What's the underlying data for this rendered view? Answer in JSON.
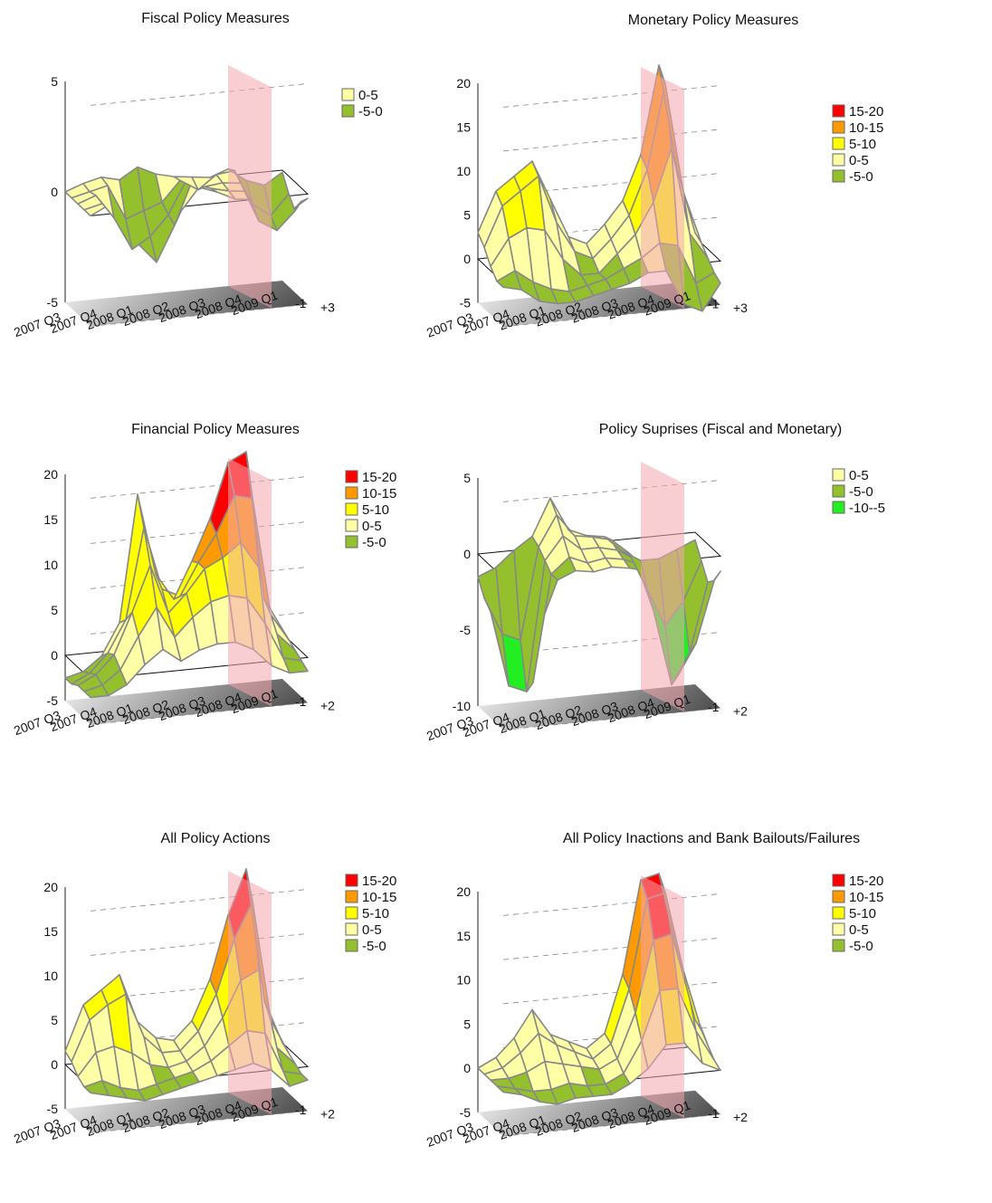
{
  "chart_data": [
    {
      "type": "surface3d",
      "title": "Fiscal Policy Measures",
      "x_labels": [
        "2007 Q3",
        "2007 Q4",
        "2008 Q1",
        "2008 Q2",
        "2008 Q3",
        "2008 Q4",
        "2009 Q1"
      ],
      "depth_labels": [
        "+3",
        "-1"
      ],
      "zlim": [
        -5,
        5
      ],
      "z_ticks": [
        -5,
        0,
        5
      ],
      "legend": [
        {
          "label": "0-5",
          "color": "#ffffa6"
        },
        {
          "label": "-5-0",
          "color": "#93c02c"
        }
      ],
      "rows": [
        [
          0.0,
          0.3,
          0.5,
          0.3,
          0.8,
          0.4,
          0.2,
          0.1,
          0.0,
          0.3,
          -0.3,
          -0.6,
          -0.1
        ],
        [
          0.0,
          0.2,
          0.4,
          -1.2,
          -0.9,
          -0.6,
          0.3,
          -0.2,
          0.4,
          0.5,
          -1.1,
          -1.7,
          -0.8
        ],
        [
          0.0,
          0.3,
          -0.8,
          -2.3,
          -1.8,
          -0.9,
          0.6,
          0.2,
          0.3,
          0.2,
          -1.6,
          -2.1,
          -1.3
        ],
        [
          0.0,
          0.2,
          -0.5,
          -1.8,
          -2.7,
          -1.1,
          0.9,
          0.4,
          0.2,
          0.1,
          -0.9,
          -1.4,
          -0.6
        ],
        [
          0.0,
          0.4,
          0.2,
          -0.6,
          -0.4,
          -0.2,
          0.8,
          0.5,
          0.1,
          0.0,
          -0.4,
          -0.7,
          -0.2
        ]
      ]
    },
    {
      "type": "surface3d",
      "title": "Monetary Policy Measures",
      "x_labels": [
        "2007 Q3",
        "2007 Q4",
        "2008 Q1",
        "2008 Q2",
        "2008 Q3",
        "2008 Q4",
        "2009 Q1"
      ],
      "depth_labels": [
        "+3",
        "-1"
      ],
      "zlim": [
        -5,
        20
      ],
      "z_ticks": [
        -5,
        0,
        5,
        10,
        15,
        20
      ],
      "legend": [
        {
          "label": "15-20",
          "color": "#ff0000"
        },
        {
          "label": "10-15",
          "color": "#ff9900"
        },
        {
          "label": "5-10",
          "color": "#ffff00"
        },
        {
          "label": "0-5",
          "color": "#ffffa6"
        },
        {
          "label": "-5-0",
          "color": "#93c02c"
        }
      ],
      "rows": [
        [
          3.0,
          7.5,
          9.0,
          10.5,
          6.0,
          1.5,
          0.5,
          2.5,
          5.0,
          10.0,
          20.0,
          8.0,
          0.5
        ],
        [
          2.0,
          6.5,
          8.0,
          9.5,
          4.0,
          0.5,
          -0.5,
          1.5,
          4.0,
          9.0,
          18.5,
          6.0,
          0.0
        ],
        [
          0.5,
          3.5,
          4.5,
          4.0,
          0.5,
          -1.5,
          -1.5,
          0.5,
          2.5,
          6.0,
          12.0,
          2.0,
          -1.0
        ],
        [
          -0.5,
          0.5,
          -1.0,
          -2.0,
          -2.5,
          -2.0,
          -1.5,
          -0.5,
          0.5,
          2.0,
          1.5,
          -3.0,
          -2.0
        ],
        [
          -0.5,
          -1.0,
          -2.5,
          -3.0,
          -3.0,
          -2.5,
          -2.0,
          -1.5,
          -0.5,
          -0.5,
          -4.5,
          -5.5,
          -2.5
        ]
      ]
    },
    {
      "type": "surface3d",
      "title": "Financial Policy Measures",
      "x_labels": [
        "2007 Q3",
        "2007 Q4",
        "2008 Q1",
        "2008 Q2",
        "2008 Q3",
        "2008 Q4",
        "2009 Q1"
      ],
      "depth_labels": [
        "+2",
        "-1"
      ],
      "zlim": [
        -5,
        20
      ],
      "z_ticks": [
        -5,
        0,
        5,
        10,
        15,
        20
      ],
      "legend": [
        {
          "label": "15-20",
          "color": "#ff0000"
        },
        {
          "label": "10-15",
          "color": "#ff9900"
        },
        {
          "label": "5-10",
          "color": "#ffff00"
        },
        {
          "label": "0-5",
          "color": "#ffffa6"
        },
        {
          "label": "-5-0",
          "color": "#93c02c"
        }
      ],
      "rows": [
        [
          -2.5,
          -2.0,
          -0.5,
          3.0,
          17.0,
          8.0,
          5.0,
          9.0,
          13.5,
          19.5,
          20.5,
          4.0,
          0.5
        ],
        [
          -2.5,
          -1.5,
          0.5,
          4.0,
          14.0,
          7.0,
          6.0,
          9.5,
          12.5,
          16.5,
          16.0,
          3.0,
          0.0
        ],
        [
          -2.0,
          -1.0,
          1.0,
          5.5,
          10.5,
          5.0,
          7.0,
          9.5,
          10.5,
          12.0,
          9.0,
          1.5,
          -0.5
        ],
        [
          -2.0,
          -1.5,
          0.0,
          3.5,
          6.5,
          3.0,
          5.0,
          6.5,
          7.0,
          6.5,
          3.5,
          -0.5,
          -1.0
        ],
        [
          -2.0,
          -2.0,
          -1.0,
          1.0,
          2.5,
          1.0,
          2.0,
          2.5,
          2.5,
          1.5,
          -0.5,
          -1.5,
          -1.5
        ]
      ]
    },
    {
      "type": "surface3d",
      "title": "Policy Suprises (Fiscal and Monetary)",
      "x_labels": [
        "2007 Q3",
        "2007 Q4",
        "2008 Q1",
        "2008 Q2",
        "2008 Q3",
        "2008 Q4",
        "2009 Q1"
      ],
      "depth_labels": [
        "+2",
        "-1"
      ],
      "zlim": [
        -10,
        5
      ],
      "z_ticks": [
        -10,
        -5,
        0,
        5
      ],
      "legend": [
        {
          "label": "0-5",
          "color": "#ffffa6"
        },
        {
          "label": "-5-0",
          "color": "#93c02c"
        },
        {
          "label": "-10--5",
          "color": "#22ee22"
        }
      ],
      "rows": [
        [
          -1.5,
          -1.0,
          0.0,
          0.8,
          3.2,
          1.0,
          0.5,
          0.3,
          -0.8,
          -1.5,
          -1.5,
          -1.0,
          -0.5
        ],
        [
          -2.5,
          -5.0,
          -5.5,
          0.5,
          2.5,
          1.0,
          0.8,
          0.5,
          -0.5,
          -3.0,
          -5.5,
          -4.0,
          -1.5
        ],
        [
          -3.0,
          -8.0,
          -8.5,
          0.0,
          1.5,
          0.5,
          0.5,
          0.2,
          -0.5,
          -4.0,
          -9.0,
          -7.0,
          -2.5
        ],
        [
          -2.0,
          -7.0,
          -7.5,
          -0.5,
          0.5,
          0.0,
          0.2,
          0.0,
          -0.5,
          -3.5,
          -8.0,
          -6.0,
          -2.0
        ],
        [
          -1.0,
          -3.0,
          -3.5,
          -0.5,
          0.0,
          -0.2,
          0.0,
          -0.2,
          -0.5,
          -2.0,
          -3.5,
          -2.5,
          -1.0
        ]
      ]
    },
    {
      "type": "surface3d",
      "title": "All Policy Actions",
      "x_labels": [
        "2007 Q3",
        "2007 Q4",
        "2008 Q1",
        "2008 Q2",
        "2008 Q3",
        "2008 Q4",
        "2009 Q1"
      ],
      "depth_labels": [
        "+2",
        "-1"
      ],
      "zlim": [
        -5,
        20
      ],
      "z_ticks": [
        -5,
        0,
        5,
        10,
        15,
        20
      ],
      "legend": [
        {
          "label": "15-20",
          "color": "#ff0000"
        },
        {
          "label": "10-15",
          "color": "#ff9900"
        },
        {
          "label": "5-10",
          "color": "#ffff00"
        },
        {
          "label": "0-5",
          "color": "#ffffa6"
        },
        {
          "label": "-5-0",
          "color": "#93c02c"
        }
      ],
      "rows": [
        [
          1.5,
          6.5,
          8.0,
          9.5,
          4.0,
          2.0,
          1.5,
          3.5,
          8.0,
          15.0,
          20.0,
          5.0,
          0.0
        ],
        [
          1.0,
          5.5,
          7.0,
          8.0,
          3.0,
          1.0,
          1.0,
          3.0,
          7.0,
          13.0,
          17.0,
          3.5,
          -0.5
        ],
        [
          0.0,
          2.5,
          3.0,
          2.0,
          0.5,
          0.0,
          0.5,
          2.0,
          5.0,
          9.0,
          10.0,
          1.0,
          -1.0
        ],
        [
          -0.5,
          0.0,
          -1.0,
          -1.5,
          -1.0,
          -0.5,
          0.0,
          1.0,
          2.5,
          4.0,
          3.5,
          -1.0,
          -1.5
        ],
        [
          -0.5,
          -1.0,
          -1.5,
          -2.0,
          -1.5,
          -1.0,
          -0.5,
          0.0,
          0.5,
          1.0,
          0.0,
          -2.0,
          -1.5
        ]
      ]
    },
    {
      "type": "surface3d",
      "title": "All Policy Inactions and Bank Bailouts/Failures",
      "x_labels": [
        "2007 Q3",
        "2007 Q4",
        "2008 Q1",
        "2008 Q2",
        "2008 Q3",
        "2008 Q4",
        "2009 Q1"
      ],
      "depth_labels": [
        "+2",
        "-1"
      ],
      "zlim": [
        -5,
        20
      ],
      "z_ticks": [
        -5,
        0,
        5,
        10,
        15,
        20
      ],
      "legend": [
        {
          "label": "15-20",
          "color": "#ff0000"
        },
        {
          "label": "10-15",
          "color": "#ff9900"
        },
        {
          "label": "5-10",
          "color": "#ffff00"
        },
        {
          "label": "0-5",
          "color": "#ffffa6"
        },
        {
          "label": "-5-0",
          "color": "#93c02c"
        }
      ],
      "rows": [
        [
          0.0,
          1.0,
          3.0,
          6.0,
          3.0,
          2.0,
          1.0,
          2.5,
          9.0,
          19.5,
          20.0,
          11.0,
          3.0
        ],
        [
          0.0,
          0.5,
          2.0,
          4.0,
          2.5,
          1.5,
          0.5,
          2.0,
          8.0,
          18.0,
          18.5,
          9.5,
          2.5
        ],
        [
          0.0,
          0.0,
          0.5,
          1.5,
          1.0,
          0.5,
          0.0,
          1.0,
          6.0,
          14.0,
          14.5,
          7.0,
          1.5
        ],
        [
          0.0,
          -0.5,
          -1.0,
          -1.0,
          -0.5,
          -1.0,
          -1.0,
          0.0,
          3.5,
          9.0,
          9.0,
          4.0,
          0.5
        ],
        [
          0.0,
          -0.5,
          -1.5,
          -2.0,
          -1.5,
          -1.5,
          -1.5,
          -0.5,
          1.0,
          3.5,
          3.5,
          1.0,
          0.0
        ]
      ]
    }
  ],
  "colors": {
    "grid_line": "#888888",
    "mesh_edge": "#888888",
    "marker_plane": "#f4a6ae",
    "floor_light": "#f2f2f2",
    "floor_dark": "#555555"
  }
}
